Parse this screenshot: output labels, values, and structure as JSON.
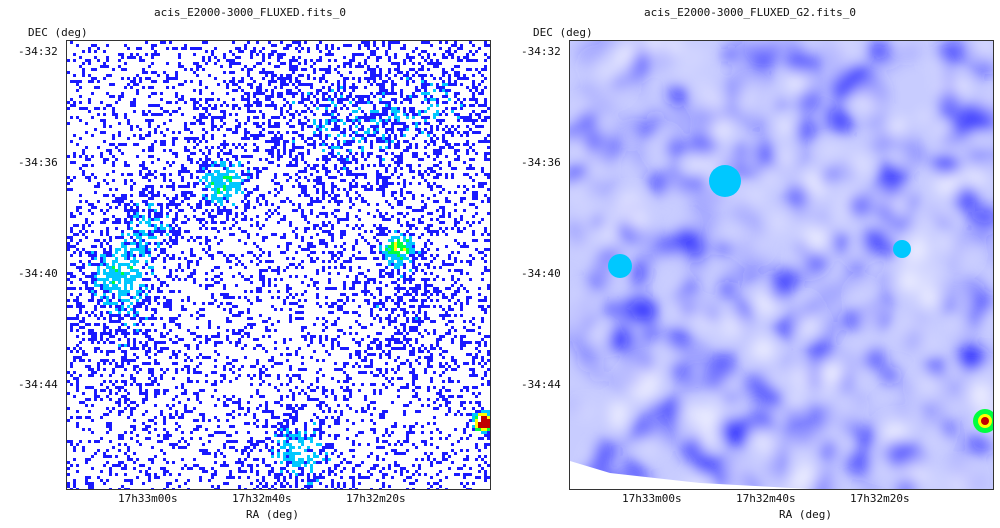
{
  "chart_data": [
    {
      "type": "heatmap",
      "title": "acis_E2000-3000_FLUXED.fits_0",
      "ylabel": "DEC (deg)",
      "xlabel": "RA (deg)",
      "y_ticks": [
        "-34:32",
        "-34:36",
        "-34:40",
        "-34:44"
      ],
      "x_ticks": [
        "17h33m00s",
        "17h32m40s",
        "17h32m20s"
      ],
      "colormap": [
        "#ffffff",
        "#1a1aff",
        "#00c8ff",
        "#00ff40",
        "#ffff00",
        "#ff8000",
        "#c00000"
      ],
      "style": "unsmoothed"
    },
    {
      "type": "heatmap",
      "title": "acis_E2000-3000_FLUXED_G2.fits_0",
      "ylabel": "DEC (deg)",
      "xlabel": "RA (deg)",
      "y_ticks": [
        "-34:32",
        "-34:36",
        "-34:40",
        "-34:44"
      ],
      "x_ticks": [
        "17h33m00s",
        "17h32m40s",
        "17h32m20s"
      ],
      "colormap": [
        "#ffffff",
        "#1a1aff",
        "#00c8ff",
        "#00ff40",
        "#ffff00",
        "#ff8000",
        "#c00000"
      ],
      "style": "smoothed"
    }
  ]
}
